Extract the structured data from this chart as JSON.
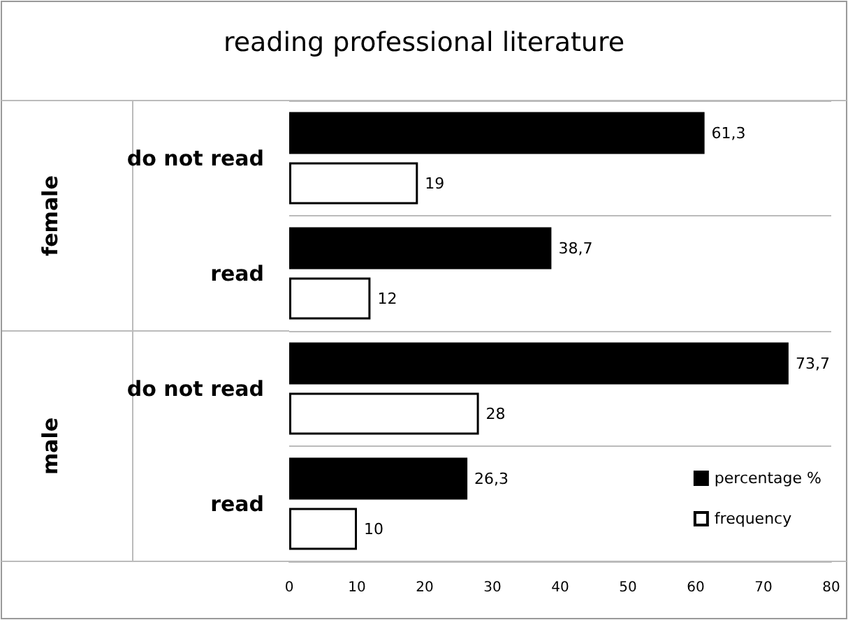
{
  "chart_data": {
    "type": "bar",
    "orientation": "horizontal",
    "title": "reading professional literature",
    "categories": [
      "do not read",
      "read",
      "do not read",
      "read"
    ],
    "series": [
      {
        "name": "percentage %",
        "color": "#000000",
        "values": [
          61.3,
          38.7,
          73.7,
          26.3
        ],
        "value_labels": [
          "61,3",
          "38,7",
          "73,7",
          "26,3"
        ]
      },
      {
        "name": "frequency",
        "color": "#ffffff",
        "values": [
          19,
          12,
          28,
          10
        ],
        "value_labels": [
          "19",
          "12",
          "28",
          "10"
        ]
      }
    ],
    "annotations": [
      "female",
      "male"
    ],
    "xlim": [
      0,
      80
    ],
    "xticks": [
      0,
      10,
      20,
      30,
      40,
      50,
      60,
      70,
      80
    ],
    "grid": "y",
    "legend": "bottom right"
  }
}
